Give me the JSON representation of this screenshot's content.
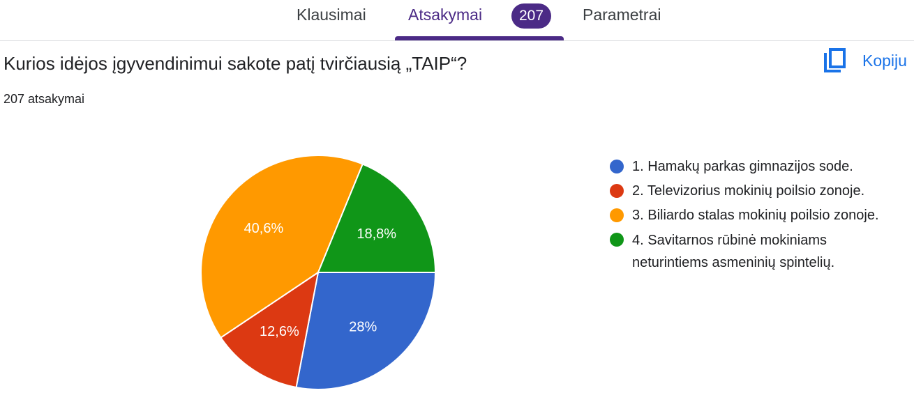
{
  "tabs": [
    {
      "label": "Klausimai"
    },
    {
      "label": "Atsakymai",
      "badge": "207",
      "active": true
    },
    {
      "label": "Parametrai"
    }
  ],
  "question": {
    "title": "Kurios idėjos įgyvendinimui sakote patį tvirčiausią „TAIP“?",
    "response_count": "207 atsakymai"
  },
  "copy_button": {
    "label": "Kopiju",
    "icon": "copy-icon"
  },
  "colors": {
    "accent": "#4b2a86",
    "link": "#1a73e8"
  },
  "chart_data": {
    "type": "pie",
    "legend_position": "right",
    "start": "3 o'clock, clockwise",
    "slices": [
      {
        "name": "1. Hamakų parkas gimnazijos sode.",
        "value": 28,
        "label": "28%",
        "color": "#3366cc"
      },
      {
        "name": "2. Televizorius mokinių poilsio zonoje.",
        "value": 12.6,
        "label": "12,6%",
        "color": "#dc3912"
      },
      {
        "name": "3. Biliardo stalas mokinių poilsio zonoje.",
        "value": 40.6,
        "label": "40,6%",
        "color": "#ff9900"
      },
      {
        "name": "4. Savitarnos rūbinė mokiniams neturintiems asmeninių spintelių.",
        "value": 18.8,
        "label": "18,8%",
        "color": "#109618"
      }
    ]
  }
}
